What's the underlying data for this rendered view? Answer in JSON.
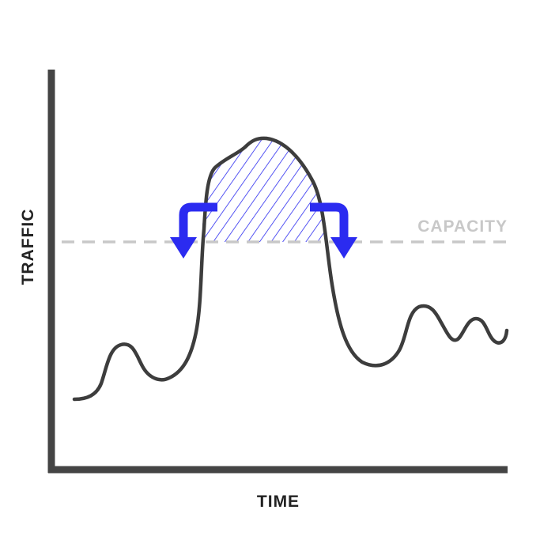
{
  "labels": {
    "x_axis": "TIME",
    "y_axis": "TRAFFIC",
    "capacity": "CAPACITY"
  },
  "colors": {
    "axis": "#444444",
    "curve": "#3d3d3d",
    "capacity_line": "#c8c8c8",
    "capacity_text": "#c8c8c8",
    "overflow_hatch": "#2b2bf0",
    "arrows": "#2b2bf0",
    "label_text": "#222222"
  },
  "icons": {
    "left_arrow": "down-turn-arrow-icon",
    "right_arrow": "down-turn-arrow-icon"
  }
}
